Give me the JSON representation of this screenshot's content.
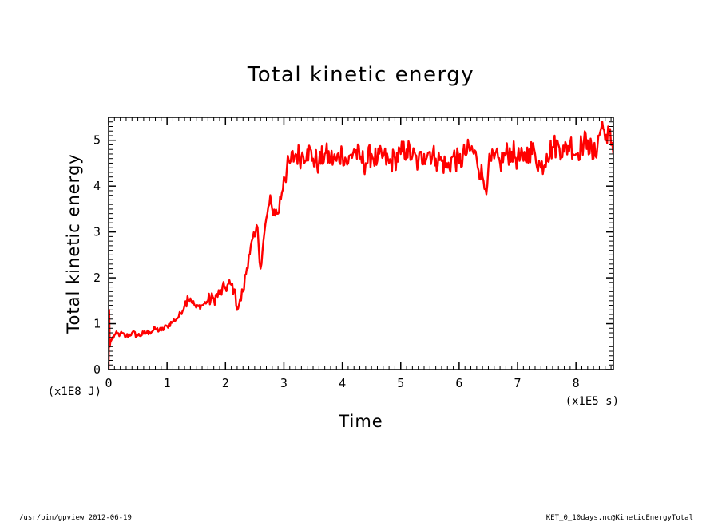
{
  "chart_data": {
    "type": "line",
    "title": "Total kinetic energy",
    "xlabel": "Time",
    "ylabel": "Total kinetic energy",
    "x_unit": "(x1E5 s)",
    "y_unit": "(x1E8 J)",
    "xlim": [
      0,
      8.64
    ],
    "ylim": [
      0,
      5.5
    ],
    "x_ticks": [
      "0",
      "1",
      "2",
      "3",
      "4",
      "5",
      "6",
      "7",
      "8"
    ],
    "y_ticks": [
      "0",
      "1",
      "2",
      "3",
      "4",
      "5"
    ],
    "grid": false,
    "series": [
      {
        "color": "#ff0000",
        "x": [
          0,
          0.01,
          0.02,
          0.03,
          0.05,
          0.1,
          0.2,
          0.3,
          0.4,
          0.5,
          0.6,
          0.7,
          0.8,
          0.9,
          1.0,
          1.1,
          1.2,
          1.3,
          1.35,
          1.4,
          1.5,
          1.6,
          1.7,
          1.8,
          1.9,
          2.0,
          2.1,
          2.15,
          2.2,
          2.3,
          2.4,
          2.5,
          2.55,
          2.6,
          2.7,
          2.75,
          2.8,
          2.9,
          3.0,
          3.1,
          3.2,
          3.3,
          3.4,
          3.5,
          3.6,
          3.7,
          3.8,
          3.9,
          4.0,
          4.1,
          4.2,
          4.3,
          4.4,
          4.5,
          4.6,
          4.7,
          4.8,
          4.9,
          5.0,
          5.1,
          5.2,
          5.3,
          5.4,
          5.5,
          5.6,
          5.7,
          5.8,
          5.9,
          6.0,
          6.1,
          6.2,
          6.3,
          6.4,
          6.45,
          6.5,
          6.6,
          6.7,
          6.8,
          6.9,
          7.0,
          7.1,
          7.2,
          7.3,
          7.4,
          7.5,
          7.6,
          7.7,
          7.8,
          7.9,
          8.0,
          8.1,
          8.2,
          8.3,
          8.4,
          8.45,
          8.5,
          8.55,
          8.6,
          8.64
        ],
        "y": [
          0.0,
          1.3,
          0.5,
          0.6,
          0.65,
          0.75,
          0.78,
          0.72,
          0.8,
          0.74,
          0.78,
          0.82,
          0.88,
          0.85,
          0.95,
          1.05,
          1.15,
          1.4,
          1.6,
          1.55,
          1.35,
          1.4,
          1.5,
          1.55,
          1.65,
          1.8,
          1.85,
          1.75,
          1.3,
          1.7,
          2.5,
          2.9,
          3.1,
          2.2,
          3.3,
          3.6,
          3.5,
          3.4,
          4.2,
          4.5,
          4.7,
          4.65,
          4.8,
          4.6,
          4.5,
          4.7,
          4.6,
          4.55,
          4.75,
          4.5,
          4.8,
          4.6,
          4.5,
          4.7,
          4.55,
          4.65,
          4.5,
          4.6,
          4.7,
          4.8,
          4.65,
          4.5,
          4.7,
          4.75,
          4.6,
          4.55,
          4.4,
          4.65,
          4.5,
          4.7,
          4.8,
          4.6,
          4.2,
          3.95,
          4.4,
          4.6,
          4.5,
          4.7,
          4.75,
          4.6,
          4.55,
          4.8,
          4.7,
          4.4,
          4.7,
          4.85,
          4.9,
          4.75,
          4.95,
          4.7,
          4.9,
          5.0,
          4.6,
          5.1,
          5.4,
          5.0,
          5.3,
          4.9,
          4.7
        ]
      }
    ]
  },
  "footer": {
    "left": "/usr/bin/gpview  2012-06-19",
    "right": "KET_0_10days.nc@KineticEnergyTotal"
  }
}
